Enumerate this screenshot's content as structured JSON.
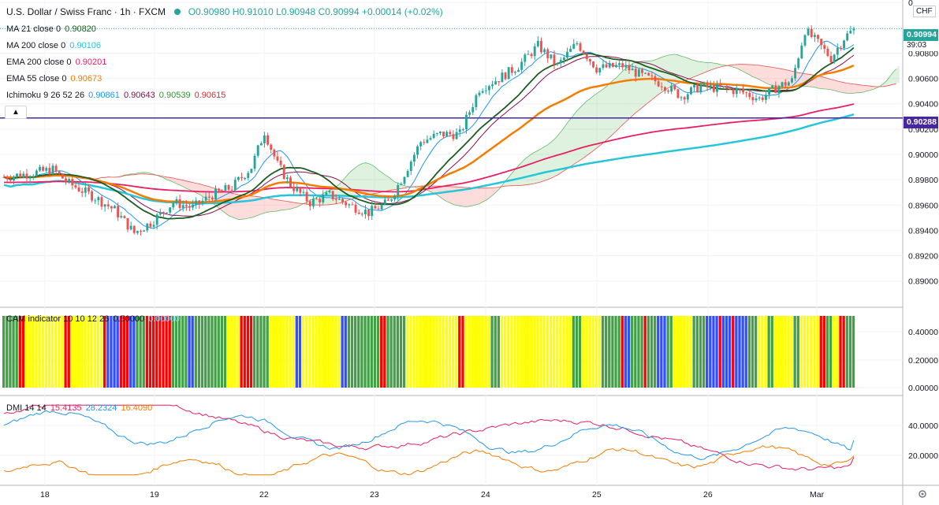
{
  "header": {
    "symbol": "U.S. Dollar / Swiss Franc · 1h · FXCM",
    "o": "O0.90980",
    "h": "H0.91010",
    "l": "L0.90948",
    "c": "C0.90994",
    "chg": "+0.00014 (+0.02%)",
    "currency": "CHF",
    "live_dot_color": "#26a69a"
  },
  "indicators": [
    {
      "label": "MA 21 close 0",
      "value": "0.90820",
      "color": "#1b5e20"
    },
    {
      "label": "MA 200 close 0",
      "value": "0.90106",
      "color": "#26c6da"
    },
    {
      "label": "EMA 200 close 0",
      "value": "0.90201",
      "color": "#e91e63"
    },
    {
      "label": "EMA 55 close 0",
      "value": "0.90673",
      "color": "#f57c00"
    },
    {
      "label": "Ichimoku 9 26 52 26",
      "values": [
        "0.90861",
        "0.90643",
        "0.90539",
        "0.90615"
      ],
      "colors": [
        "#2196f3",
        "#880e4f",
        "#388e3c",
        "#d32f2f"
      ]
    }
  ],
  "collapse_icon": "chevron-up-icon",
  "cam": {
    "label": "CAM indicator 10 10 12 26",
    "v1": "0.50000",
    "v2": "0.00000"
  },
  "dmi": {
    "label": "DMI 14 14",
    "v1": "15.4135",
    "v2": "28.2324",
    "v3": "16.4090",
    "colors": [
      "#e91e63",
      "#2196f3",
      "#f57c00"
    ]
  },
  "price_badge": {
    "value": "0.90994",
    "countdown": "39:03",
    "color": "#26a69a"
  },
  "level_badge": {
    "value": "0.90288",
    "color": "#4527a0"
  },
  "scale_icon": "scale-settings-icon",
  "chart_data": [
    {
      "type": "candlestick",
      "title": "U.S. Dollar / Swiss Franc · 1h · FXCM",
      "ylim": [
        0.8878,
        0.9122
      ],
      "yticks": [
        "0.89000",
        "0.89200",
        "0.89400",
        "0.89600",
        "0.89800",
        "0.90000",
        "0.90200",
        "0.90400",
        "0.90600",
        "0.90800",
        "0"
      ],
      "xticks": [
        "18",
        "19",
        "22",
        "23",
        "24",
        "25",
        "26",
        "Mar"
      ],
      "anchors": [
        [
          0,
          0.8982
        ],
        [
          8,
          0.8985
        ],
        [
          15,
          0.8988
        ],
        [
          20,
          0.8977
        ],
        [
          28,
          0.8966
        ],
        [
          34,
          0.8956
        ],
        [
          40,
          0.8938
        ],
        [
          45,
          0.8946
        ],
        [
          52,
          0.8962
        ],
        [
          58,
          0.8958
        ],
        [
          64,
          0.8968
        ],
        [
          70,
          0.8974
        ],
        [
          76,
          0.899
        ],
        [
          80,
          0.9018
        ],
        [
          84,
          0.8992
        ],
        [
          88,
          0.8976
        ],
        [
          94,
          0.8962
        ],
        [
          100,
          0.8968
        ],
        [
          106,
          0.896
        ],
        [
          112,
          0.8954
        ],
        [
          118,
          0.8962
        ],
        [
          122,
          0.898
        ],
        [
          128,
          0.901
        ],
        [
          134,
          0.9016
        ],
        [
          140,
          0.9016
        ],
        [
          146,
          0.9052
        ],
        [
          152,
          0.906
        ],
        [
          158,
          0.907
        ],
        [
          164,
          0.9086
        ],
        [
          170,
          0.907
        ],
        [
          176,
          0.9088
        ],
        [
          182,
          0.9068
        ],
        [
          190,
          0.907
        ],
        [
          196,
          0.9062
        ],
        [
          202,
          0.9056
        ],
        [
          208,
          0.9046
        ],
        [
          214,
          0.9054
        ],
        [
          220,
          0.9052
        ],
        [
          226,
          0.905
        ],
        [
          232,
          0.9044
        ],
        [
          238,
          0.9054
        ],
        [
          242,
          0.9058
        ],
        [
          246,
          0.9098
        ],
        [
          250,
          0.9088
        ],
        [
          254,
          0.9076
        ],
        [
          258,
          0.9092
        ],
        [
          261,
          0.9099
        ]
      ],
      "series": [
        {
          "name": "MA 21 close 0",
          "last": 0.9082,
          "color": "#1b5e20"
        },
        {
          "name": "MA 200 close 0",
          "last": 0.90106,
          "color": "#26c6da"
        },
        {
          "name": "EMA 200 close 0",
          "last": 0.90201,
          "color": "#e91e63"
        },
        {
          "name": "EMA 55 close 0",
          "last": 0.90673,
          "color": "#f57c00"
        }
      ],
      "level": 0.90288
    },
    {
      "type": "bar",
      "title": "CAM indicator 10 10 12 26",
      "ylim": [
        0,
        0.5
      ],
      "yticks": [
        "0.00000",
        "0.20000",
        "0.40000"
      ],
      "colors": [
        "#43a047",
        "#ff0000",
        "#ffff00",
        "#304ffe"
      ],
      "runs": [
        [
          0,
          5
        ],
        [
          1,
          2
        ],
        [
          2,
          12
        ],
        [
          1,
          2
        ],
        [
          2,
          10
        ],
        [
          1,
          1
        ],
        [
          3,
          4
        ],
        [
          1,
          3
        ],
        [
          3,
          2
        ],
        [
          0,
          3
        ],
        [
          1,
          8
        ],
        [
          0,
          5
        ],
        [
          3,
          2
        ],
        [
          0,
          10
        ],
        [
          2,
          4
        ],
        [
          1,
          4
        ],
        [
          0,
          5
        ],
        [
          2,
          8
        ],
        [
          3,
          2
        ],
        [
          2,
          12
        ],
        [
          3,
          2
        ],
        [
          0,
          10
        ],
        [
          1,
          2
        ],
        [
          0,
          6
        ],
        [
          2,
          16
        ],
        [
          1,
          2
        ],
        [
          2,
          8
        ],
        [
          0,
          3
        ],
        [
          2,
          22
        ],
        [
          0,
          3
        ],
        [
          2,
          6
        ],
        [
          0,
          6
        ],
        [
          1,
          1
        ],
        [
          3,
          2
        ],
        [
          0,
          4
        ],
        [
          1,
          1
        ],
        [
          0,
          3
        ],
        [
          3,
          3
        ],
        [
          0,
          2
        ],
        [
          2,
          6
        ],
        [
          0,
          4
        ],
        [
          3,
          4
        ],
        [
          1,
          1
        ],
        [
          3,
          3
        ],
        [
          1,
          1
        ],
        [
          3,
          4
        ],
        [
          0,
          3
        ],
        [
          2,
          3
        ],
        [
          0,
          2
        ],
        [
          2,
          6
        ],
        [
          0,
          2
        ],
        [
          2,
          6
        ],
        [
          1,
          2
        ],
        [
          0,
          2
        ],
        [
          2,
          2
        ],
        [
          1,
          2
        ],
        [
          0,
          3
        ]
      ]
    },
    {
      "type": "line",
      "title": "DMI 14 14",
      "ylim": [
        0,
        60
      ],
      "yticks": [
        "20.0000",
        "40.0000"
      ],
      "series": [
        {
          "name": "15.4135",
          "color": "#e91e63",
          "last": 15.4135
        },
        {
          "name": "28.2324",
          "color": "#2196f3",
          "last": 28.2324
        },
        {
          "name": "16.4090",
          "color": "#f57c00",
          "last": 16.409
        }
      ]
    }
  ],
  "xaxis_labels": [
    "18",
    "19",
    "22",
    "23",
    "24",
    "25",
    "26",
    "Mar"
  ]
}
